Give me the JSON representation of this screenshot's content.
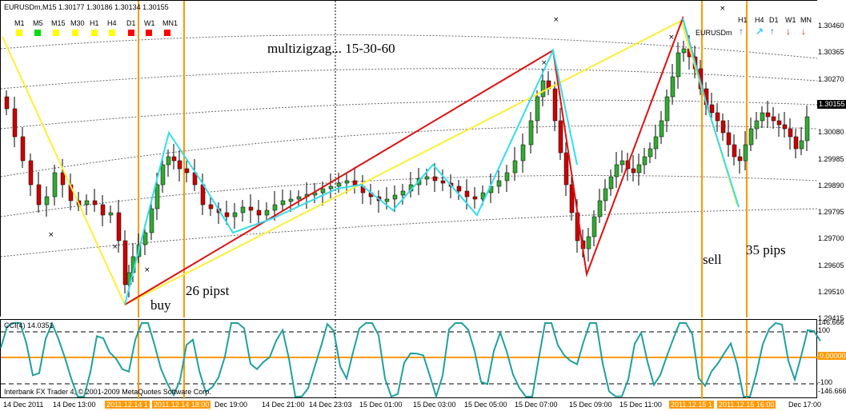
{
  "header": {
    "symbol_info": "EURUSDm,M15  1.30177 1.30186 1.30134 1.30155",
    "indicator_label": "CCI(4) 14.0351",
    "copyright": "Interbank FX Trader 4, © 2001-2009 MetaQuotes Software Corp."
  },
  "timeframes": [
    {
      "label": "M1",
      "color": "#ffff00"
    },
    {
      "label": "M5",
      "color": "#00dd00"
    },
    {
      "label": "M15",
      "color": "#ffff00"
    },
    {
      "label": "M30",
      "color": "#ffff00"
    },
    {
      "label": "H1",
      "color": "#ffff00"
    },
    {
      "label": "H4",
      "color": "#ffff00"
    },
    {
      "label": "D1",
      "color": "#ff0000"
    },
    {
      "label": "W1",
      "color": "#ff0000"
    },
    {
      "label": "MN1",
      "color": "#ff0000"
    }
  ],
  "right_panel": {
    "symbol": "EURUSDm",
    "items": [
      {
        "label": "H1",
        "arrow": "up",
        "color": "#1e5aff"
      },
      {
        "label": "H4",
        "arrow": "up-right",
        "color": "#33ccff"
      },
      {
        "label": "D1",
        "arrow": "up",
        "color": "#1e5aff"
      },
      {
        "label": "W1",
        "arrow": "down",
        "color": "#ff0000"
      },
      {
        "label": "MN",
        "arrow": "down",
        "color": "#ff0000"
      }
    ]
  },
  "annotations": {
    "title": "multizigzag... 15-30-60",
    "buy": "buy",
    "buy_pips": "26 pipst",
    "sell": "sell",
    "sell_pips": "35 pips"
  },
  "price_scale": {
    "labels": [
      "1.30460",
      "1.30365",
      "1.30270",
      "1.30175",
      "1.30080",
      "1.29985",
      "1.29890",
      "1.29795",
      "1.29700",
      "1.29605",
      "1.29510",
      "1.29415"
    ],
    "current": "1.30155"
  },
  "indicator_scale": {
    "labels": [
      "146.666",
      "100",
      "0.00000",
      "-100",
      "-146.666"
    ]
  },
  "time_axis": {
    "labels": [
      {
        "text": "14 Dec 2011",
        "hl": false
      },
      {
        "text": "14 Dec 13:00",
        "hl": false
      },
      {
        "text": "2011.12.14 1",
        "hl": true
      },
      {
        "text": "2011.12.14 18:00",
        "hl": true
      },
      {
        "text": "Dec 19:00",
        "hl": false
      },
      {
        "text": "14 Dec 21:00",
        "hl": false
      },
      {
        "text": "14 Dec 23:03",
        "hl": false
      },
      {
        "text": "15 Dec 01:00",
        "hl": false
      },
      {
        "text": "15 Dec 03:00",
        "hl": false
      },
      {
        "text": "15 Dec 05:00",
        "hl": false
      },
      {
        "text": "15 Dec 07:00",
        "hl": false
      },
      {
        "text": "15 Dec 09:00",
        "hl": false
      },
      {
        "text": "15 Dec 11:00",
        "hl": false
      },
      {
        "text": "2011.12.15 1",
        "hl": true
      },
      {
        "text": "2011.12.15 16:00",
        "hl": true
      },
      {
        "text": "Dec 17:00",
        "hl": false
      }
    ]
  },
  "colors": {
    "bull": "#33aa33",
    "bear": "#cc0000",
    "zigzag_yellow": "#ffee33",
    "zigzag_red": "#dd1111",
    "zigzag_cyan": "#33ddee",
    "marker_orange": "#ff9900",
    "cci_line": "#20a0a0"
  }
}
